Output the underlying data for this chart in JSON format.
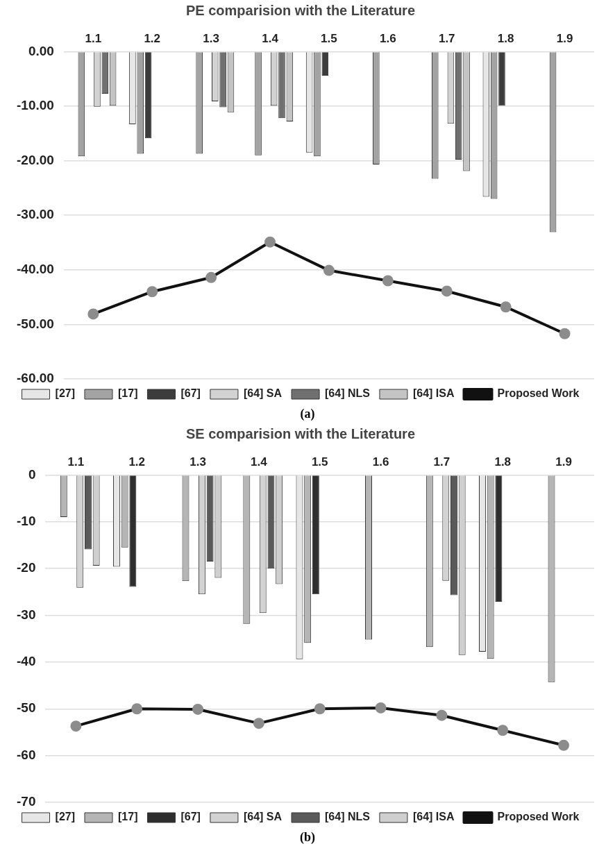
{
  "chart_data": [
    {
      "type": "bar",
      "title": "PE comparision with the Literature",
      "categories": [
        "1.1",
        "1.2",
        "1.3",
        "1.4",
        "1.5",
        "1.6",
        "1.7",
        "1.8",
        "1.9"
      ],
      "series": [
        {
          "name": "[27]",
          "color": "#e6e6e6",
          "values": [
            null,
            -13.3,
            null,
            null,
            -18.5,
            null,
            null,
            -26.6,
            null
          ]
        },
        {
          "name": "[17]",
          "color": "#a3a3a3",
          "values": [
            -19.2,
            -18.7,
            -18.7,
            -19.0,
            -19.2,
            -20.7,
            -23.3,
            -27.0,
            -33.1
          ]
        },
        {
          "name": "[67]",
          "color": "#3c3c3c",
          "values": [
            null,
            -15.9,
            null,
            null,
            -4.4,
            null,
            null,
            -9.9,
            null
          ]
        },
        {
          "name": "[64] SA",
          "color": "#d2d2d2",
          "values": [
            -10.1,
            null,
            -9.1,
            -9.9,
            null,
            null,
            -13.2,
            null,
            null
          ]
        },
        {
          "name": "[64] NLS",
          "color": "#707070",
          "values": [
            -7.7,
            null,
            -10.2,
            -12.2,
            null,
            null,
            -19.8,
            null,
            null
          ]
        },
        {
          "name": "[64] ISA",
          "color": "#c4c4c4",
          "values": [
            -9.9,
            null,
            -11.1,
            -12.8,
            null,
            null,
            -21.9,
            null,
            null
          ]
        },
        {
          "name": "Proposed Work",
          "type": "line",
          "color": "#111111",
          "values": [
            -48.1,
            -44.0,
            -41.4,
            -34.9,
            -40.1,
            -42.0,
            -43.9,
            -46.8,
            -51.7
          ]
        }
      ],
      "ylim": [
        -60,
        0
      ],
      "yticks": [
        {
          "value": 0,
          "label": "0.00"
        },
        {
          "value": -10,
          "label": "-10.00"
        },
        {
          "value": -20,
          "label": "-20.00"
        },
        {
          "value": -30,
          "label": "-30.00"
        },
        {
          "value": -40,
          "label": "-40.00"
        },
        {
          "value": -50,
          "label": "-50.00"
        },
        {
          "value": -60,
          "label": "-60.00"
        }
      ],
      "grid": "y",
      "legend": "bottom",
      "marker": "circle",
      "annotations": [
        "(a)"
      ]
    },
    {
      "type": "bar",
      "title": "SE comparision with the Literature",
      "categories": [
        "1.1",
        "1.2",
        "1.3",
        "1.4",
        "1.5",
        "1.6",
        "1.7",
        "1.8",
        "1.9"
      ],
      "series": [
        {
          "name": "[27]",
          "color": "#e6e6e6",
          "values": [
            null,
            -19.6,
            null,
            null,
            -39.4,
            null,
            null,
            -37.8,
            null
          ]
        },
        {
          "name": "[17]",
          "color": "#b5b5b5",
          "values": [
            -9.0,
            -15.5,
            -22.7,
            -31.8,
            -35.9,
            -35.2,
            -36.8,
            -39.3,
            -44.3
          ]
        },
        {
          "name": "[67]",
          "color": "#2e2e2e",
          "values": [
            null,
            -23.9,
            null,
            null,
            -25.5,
            null,
            null,
            -27.1,
            null
          ]
        },
        {
          "name": "[64] SA",
          "color": "#d2d2d2",
          "values": [
            -24.1,
            null,
            -25.5,
            -29.5,
            null,
            null,
            -22.6,
            null,
            null
          ]
        },
        {
          "name": "[64] NLS",
          "color": "#5a5a5a",
          "values": [
            -15.9,
            null,
            -18.5,
            -20.0,
            null,
            null,
            -25.7,
            null,
            null
          ]
        },
        {
          "name": "[64] ISA",
          "color": "#cfcfcf",
          "values": [
            -19.4,
            null,
            -22.0,
            -23.3,
            null,
            null,
            -38.5,
            null,
            null
          ]
        },
        {
          "name": "Proposed Work",
          "type": "line",
          "color": "#111111",
          "values": [
            -53.7,
            -50.0,
            -50.1,
            -53.1,
            -50.0,
            -49.8,
            -51.4,
            -54.6,
            -57.8
          ]
        }
      ],
      "ylim": [
        -70,
        0
      ],
      "yticks": [
        0,
        -10,
        -20,
        -30,
        -40,
        -50,
        -60,
        -70
      ],
      "grid": "y",
      "legend": "bottom",
      "marker": "circle",
      "annotations": [
        "(b)"
      ]
    }
  ]
}
